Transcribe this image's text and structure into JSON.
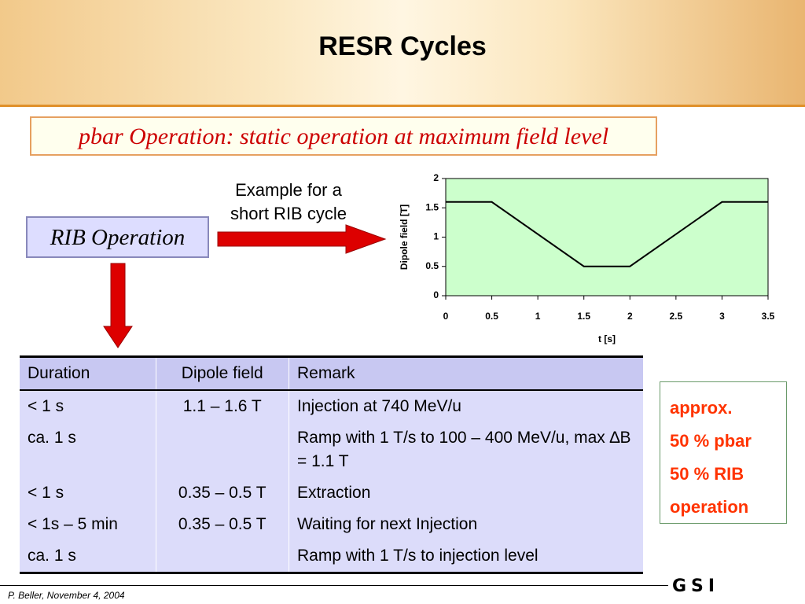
{
  "header": {
    "title": "RESR Cycles"
  },
  "banner": "pbar Operation: static operation at maximum field level",
  "rib_box": "RIB Operation",
  "example_note": [
    "Example for a",
    "short RIB cycle"
  ],
  "chart_data": {
    "type": "line",
    "xlabel": "t [s]",
    "ylabel": "Dipole field [T]",
    "x": [
      0,
      0.5,
      1.5,
      2,
      3,
      3.5
    ],
    "values": [
      1.6,
      1.6,
      0.5,
      0.5,
      1.6,
      1.6
    ],
    "color": "#000000",
    "background": "#ccffcc",
    "xlim": [
      0,
      3.5
    ],
    "xticks": [
      0,
      0.5,
      1,
      1.5,
      2,
      2.5,
      3,
      3.5
    ],
    "ylim": [
      0,
      2
    ],
    "yticks": [
      0,
      0.5,
      1,
      1.5,
      2
    ]
  },
  "table": {
    "header": [
      "Duration",
      "Dipole field",
      "Remark"
    ],
    "rows": [
      {
        "duration": "< 1 s",
        "field": "1.1 – 1.6 T",
        "remark": "Injection at 740 MeV/u"
      },
      {
        "duration": "ca. 1 s",
        "remark": "Ramp with 1 T/s to 100 – 400 MeV/u, max ∆B = 1.1 T"
      },
      {
        "duration": "< 1 s",
        "field": "0.35 – 0.5 T",
        "remark": "Extraction"
      },
      {
        "duration": "< 1s – 5 min",
        "field": "0.35 – 0.5 T",
        "remark": "Waiting for next Injection"
      },
      {
        "duration": "ca. 1 s",
        "remark": "Ramp with 1 T/s to injection level"
      }
    ]
  },
  "share_box": [
    "approx.",
    "50 % pbar",
    "50 % RIB",
    "operation"
  ],
  "footer": {
    "author": "P. Beller, November 4, 2004",
    "logo": "GSI"
  }
}
